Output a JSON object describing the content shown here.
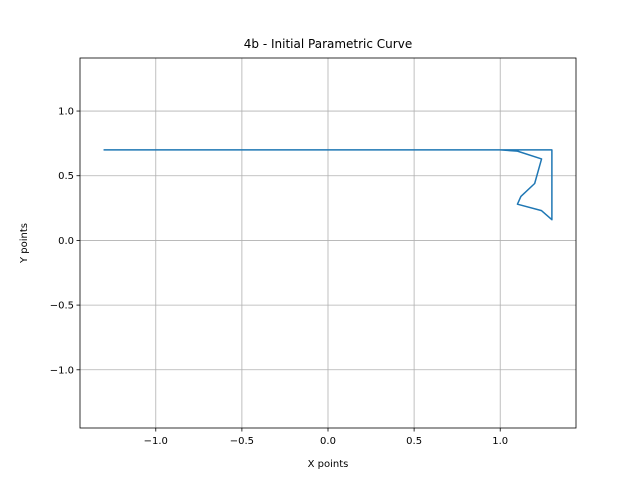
{
  "chart_data": {
    "type": "line",
    "title": "4b - Initial Parametric Curve",
    "xlabel": "X points",
    "ylabel": "Y points",
    "xlim": [
      -1.44,
      1.44
    ],
    "ylim": [
      -1.45,
      1.41
    ],
    "xticks": [
      -1.0,
      -0.5,
      0.0,
      0.5,
      1.0
    ],
    "xtick_labels": [
      "−1.0",
      "−0.5",
      "0.0",
      "0.5",
      "1.0"
    ],
    "yticks": [
      -1.0,
      -0.5,
      0.0,
      0.5,
      1.0
    ],
    "ytick_labels": [
      "−1.0",
      "−0.5",
      "0.0",
      "0.5",
      "1.0"
    ],
    "grid": true,
    "line_color": "#1f77b4",
    "series": [
      {
        "x": [
          1.3,
          1.24,
          1.1,
          1.12,
          1.2,
          1.24,
          1.1,
          1.0,
          0.97,
          0.96,
          1.0,
          0.9,
          0.7,
          0.62,
          0.61,
          0.6,
          0.56,
          0.45,
          0.26,
          0.17,
          0.08,
          0.0,
          -0.08,
          -0.16,
          -0.26,
          -0.3,
          -0.39,
          -0.48,
          -0.57,
          -0.6,
          -0.61,
          -0.62,
          -0.65,
          -0.85,
          -0.97,
          -1.0,
          -1.0,
          -0.98,
          -0.95,
          -0.91,
          -1.0,
          -1.05,
          -1.23,
          -1.25,
          -1.2,
          -1.14,
          -1.1,
          -1.08,
          -1.13,
          -1.24,
          -1.3,
          -1.26,
          -1.06,
          -1.09,
          -1.12,
          -1.13,
          -1.03,
          -0.9,
          -0.8,
          -0.79,
          -0.8,
          -0.8,
          -0.73,
          -0.62,
          -0.49,
          -0.41,
          -0.35,
          -0.26,
          -0.17,
          -0.1,
          0.0,
          0.05,
          0.14,
          0.23,
          0.31,
          0.36,
          0.41,
          0.45,
          0.55,
          0.7,
          0.77,
          0.8,
          0.81,
          0.83,
          0.98,
          1.08,
          1.11,
          1.08,
          1.06,
          1.05,
          1.1,
          1.22,
          1.3,
          1.3
        ],
        "y": [
          0.16,
          0.23,
          0.28,
          0.34,
          0.44,
          0.63,
          0.69,
          0.7,
          0.7,
          0.7,
          0.7,
          0.7,
          0.7,
          0.7,
          0.7,
          0.7,
          0.7,
          0.7,
          0.7,
          0.7,
          0.7,
          0.7,
          0.7,
          0.7,
          0.7,
          0.7,
          0.7,
          0.7,
          0.7,
          0.7,
          0.7,
          0.7,
          0.7,
          0.7,
          0.7,
          0.7,
          0.7,
          0.7,
          0.7,
          0.7,
          0.7,
          0.7,
          0.7,
          0.7,
          0.7,
          0.7,
          0.7,
          0.7,
          0.7,
          0.7,
          0.7,
          0.7,
          0.7,
          0.7,
          0.7,
          0.7,
          0.7,
          0.7,
          0.7,
          0.7,
          0.7,
          0.7,
          0.7,
          0.7,
          0.7,
          0.7,
          0.7,
          0.7,
          0.7,
          0.7,
          0.7,
          0.7,
          0.7,
          0.7,
          0.7,
          0.7,
          0.7,
          0.7,
          0.7,
          0.7,
          0.7,
          0.7,
          0.7,
          0.7,
          0.7,
          0.7,
          0.7,
          0.7,
          0.7,
          0.7,
          0.7,
          0.7,
          0.7,
          0.7
        ]
      }
    ]
  }
}
